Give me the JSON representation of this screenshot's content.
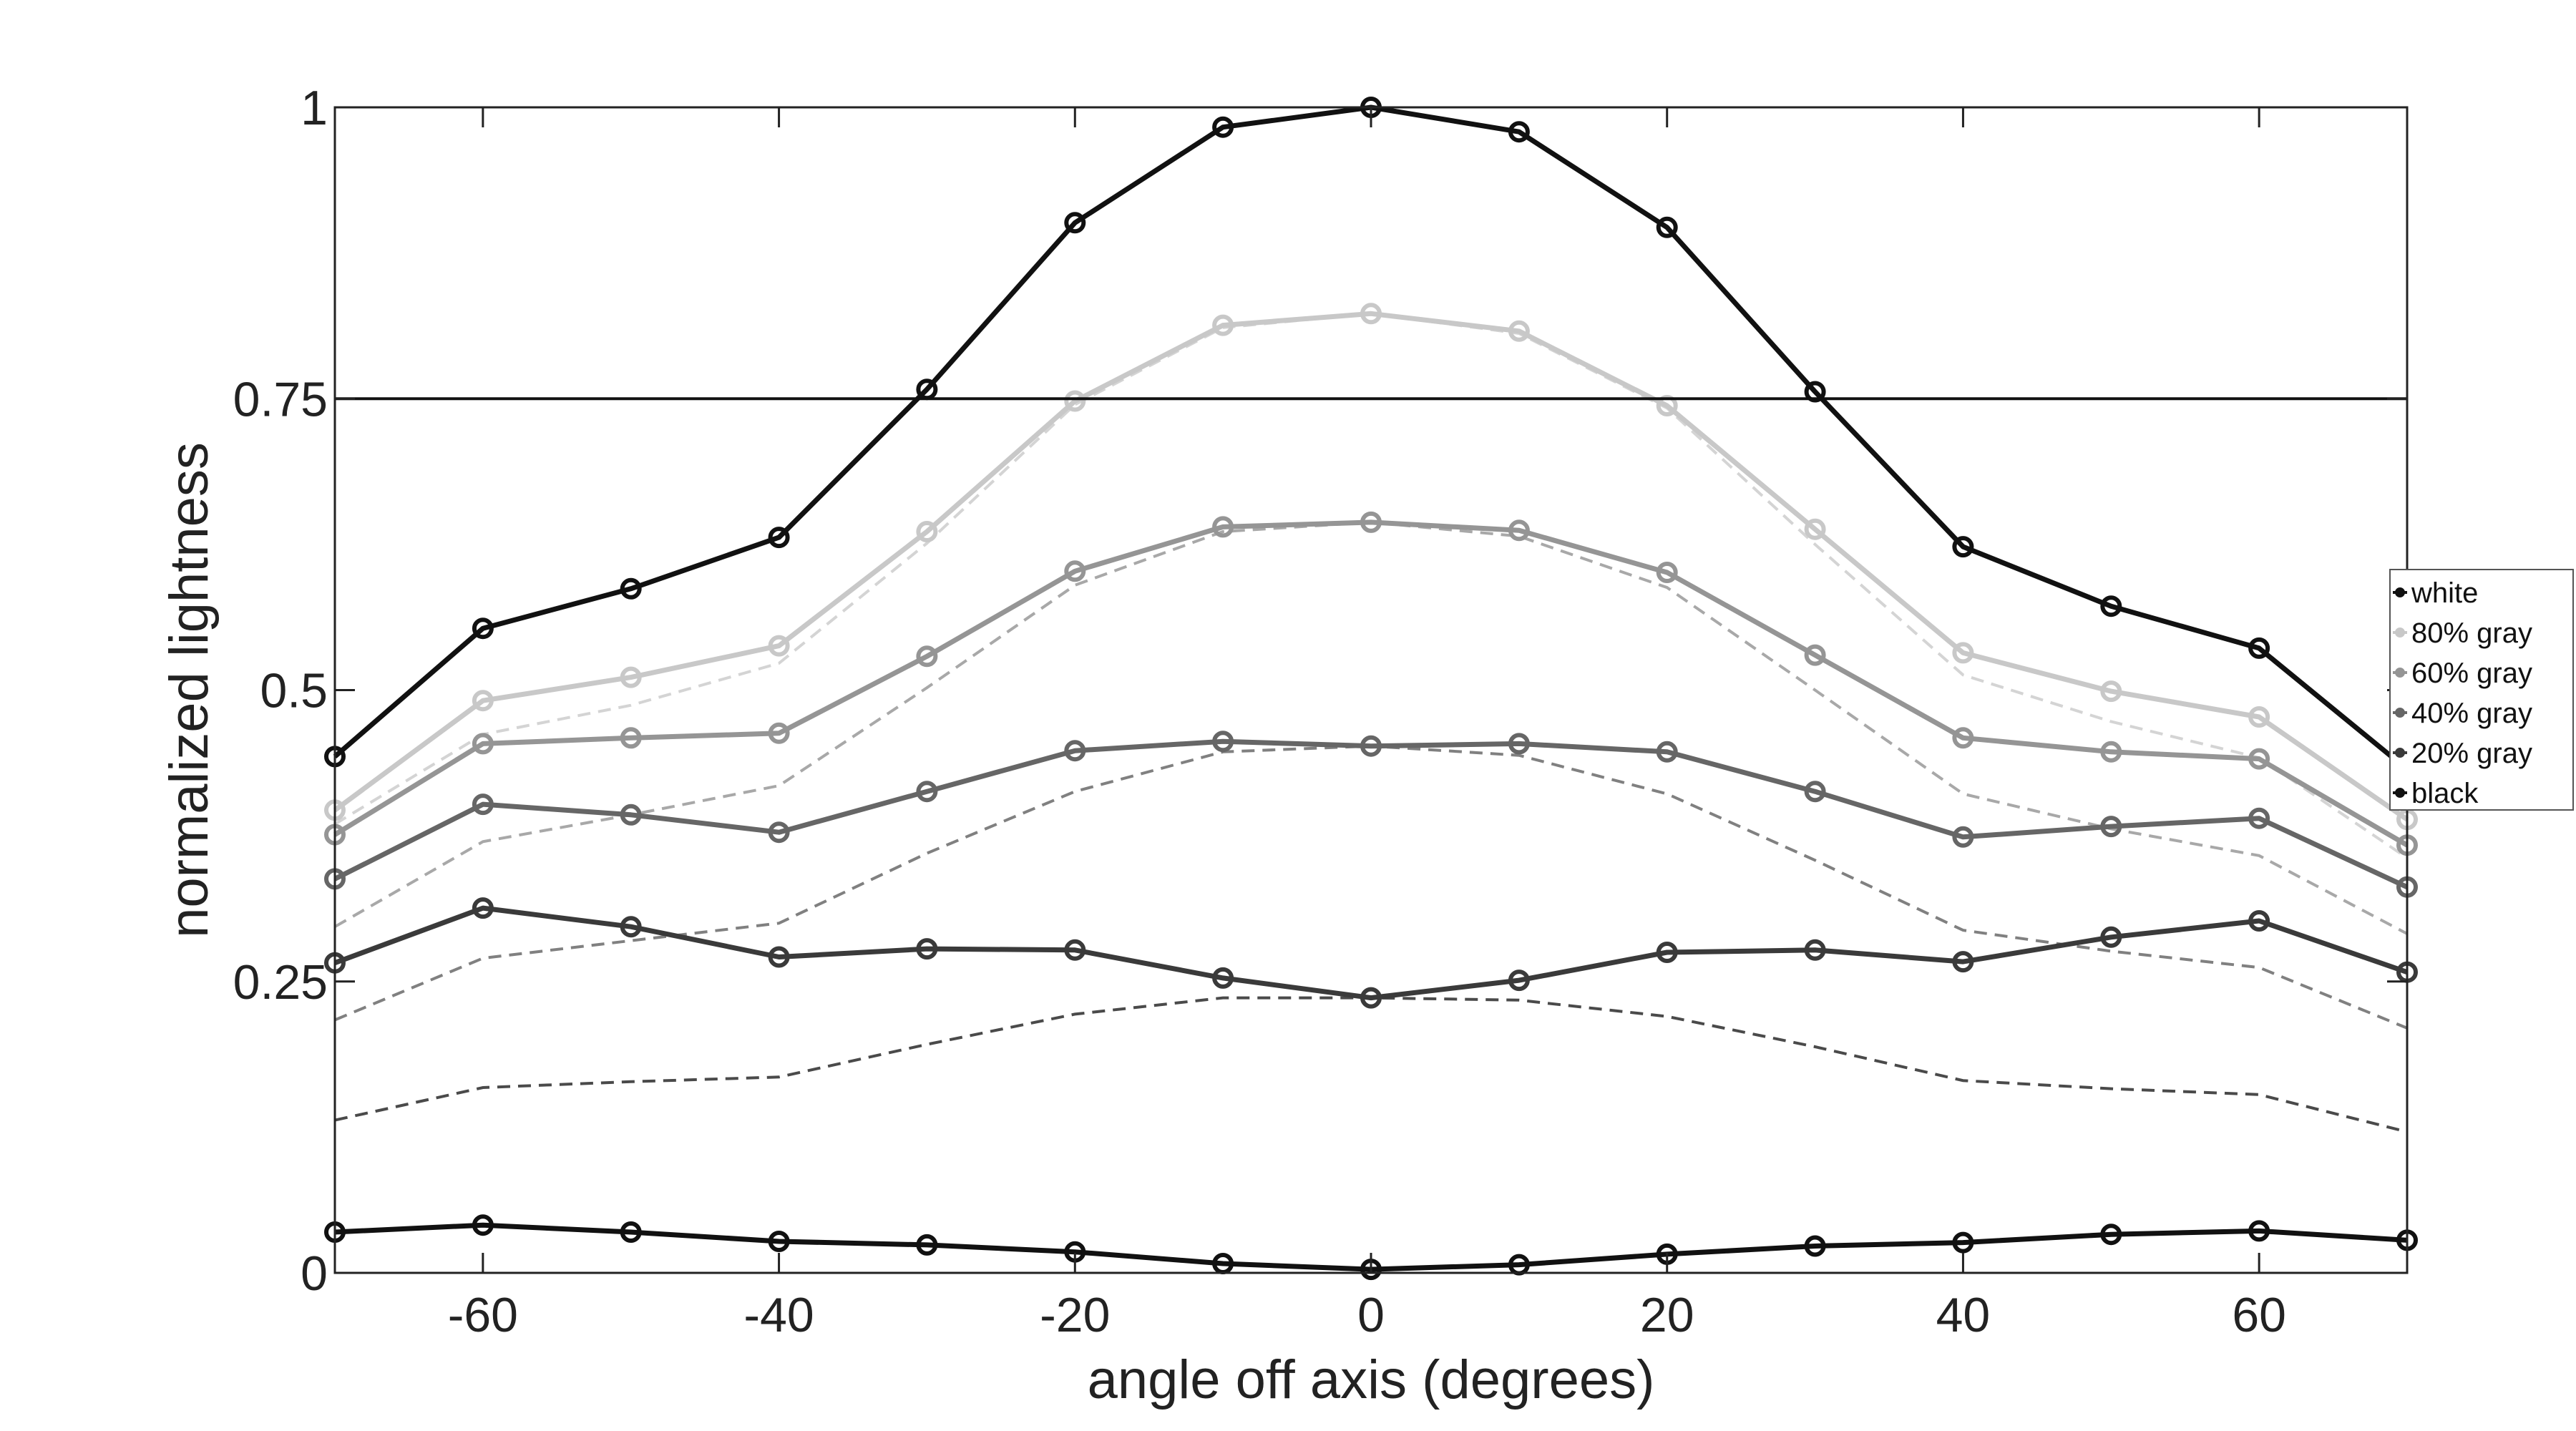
{
  "chart_data": {
    "type": "line",
    "title": "",
    "xlabel": "angle off axis (degrees)",
    "ylabel": "normalized lightness",
    "xlim": [
      -70,
      70
    ],
    "ylim": [
      0,
      1
    ],
    "xticks": [
      -60,
      -40,
      -20,
      0,
      20,
      40,
      60
    ],
    "xtick_labels": [
      "-60",
      "-40",
      "-20",
      "0",
      "20",
      "40",
      "60"
    ],
    "yticks": [
      0,
      0.25,
      0.5,
      0.75,
      1
    ],
    "ytick_labels": [
      "0",
      "0.25",
      "0.5",
      "0.75",
      "1"
    ],
    "reference_line": 0.75,
    "grid": false,
    "legend_position": "right",
    "x": [
      -70,
      -60,
      -50,
      -40,
      -30,
      -20,
      -10,
      0,
      10,
      20,
      30,
      40,
      50,
      60,
      70
    ],
    "series": [
      {
        "name": "white",
        "color": "#111111",
        "values": [
          0.443,
          0.553,
          0.587,
          0.631,
          0.758,
          0.901,
          0.983,
          1.0,
          0.979,
          0.897,
          0.756,
          0.623,
          0.572,
          0.536,
          0.432
        ]
      },
      {
        "name": "80% gray",
        "color": "#c8c8c8",
        "values": [
          0.397,
          0.491,
          0.511,
          0.538,
          0.636,
          0.748,
          0.813,
          0.823,
          0.808,
          0.744,
          0.638,
          0.532,
          0.499,
          0.477,
          0.389
        ]
      },
      {
        "name": "60% gray",
        "color": "#959595",
        "values": [
          0.376,
          0.454,
          0.459,
          0.463,
          0.529,
          0.602,
          0.64,
          0.644,
          0.637,
          0.601,
          0.53,
          0.459,
          0.447,
          0.441,
          0.367
        ]
      },
      {
        "name": "40% gray",
        "color": "#666666",
        "values": [
          0.338,
          0.402,
          0.393,
          0.378,
          0.413,
          0.448,
          0.456,
          0.452,
          0.454,
          0.447,
          0.413,
          0.374,
          0.383,
          0.39,
          0.331
        ]
      },
      {
        "name": "20% gray",
        "color": "#3a3a3a",
        "values": [
          0.266,
          0.313,
          0.297,
          0.271,
          0.278,
          0.277,
          0.253,
          0.236,
          0.251,
          0.275,
          0.277,
          0.267,
          0.288,
          0.302,
          0.258
        ]
      },
      {
        "name": "black",
        "color": "#111111",
        "values": [
          0.035,
          0.041,
          0.035,
          0.027,
          0.024,
          0.018,
          0.008,
          0.003,
          0.007,
          0.016,
          0.023,
          0.026,
          0.033,
          0.036,
          0.028
        ]
      }
    ],
    "reference_series": [
      {
        "color": "#d4d4d4",
        "values": [
          0.385,
          0.462,
          0.487,
          0.523,
          0.626,
          0.745,
          0.811,
          0.823,
          0.806,
          0.742,
          0.625,
          0.513,
          0.473,
          0.442,
          0.356
        ]
      },
      {
        "color": "#a8a8a8",
        "values": [
          0.297,
          0.37,
          0.393,
          0.418,
          0.502,
          0.59,
          0.636,
          0.644,
          0.632,
          0.588,
          0.5,
          0.411,
          0.381,
          0.358,
          0.291
        ]
      },
      {
        "color": "#808080",
        "values": [
          0.217,
          0.27,
          0.285,
          0.3,
          0.36,
          0.413,
          0.447,
          0.452,
          0.444,
          0.411,
          0.354,
          0.294,
          0.276,
          0.262,
          0.21
        ]
      },
      {
        "color": "#4a4a4a",
        "values": [
          0.131,
          0.159,
          0.164,
          0.168,
          0.196,
          0.222,
          0.236,
          0.236,
          0.234,
          0.22,
          0.194,
          0.165,
          0.158,
          0.153,
          0.121
        ]
      }
    ]
  }
}
